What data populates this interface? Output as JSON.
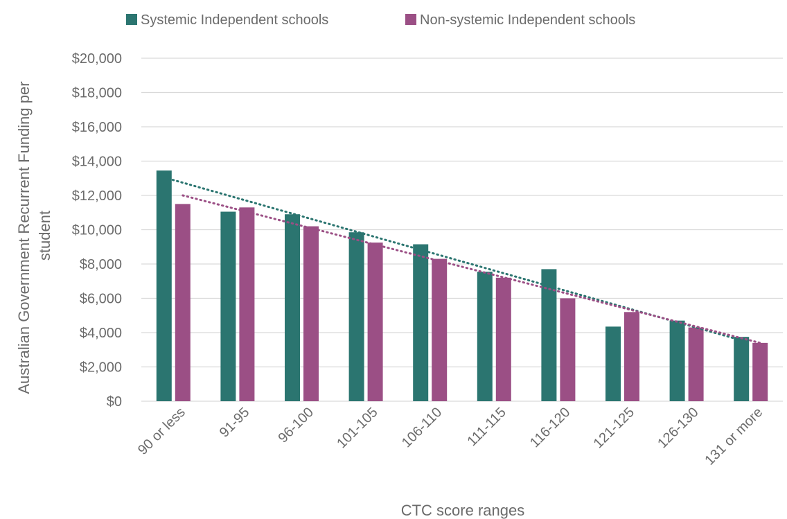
{
  "chart_data": {
    "type": "bar",
    "title": "",
    "xlabel": "CTC score ranges",
    "ylabel": "Australian Government Recurrent Funding per student",
    "categories": [
      "90 or less",
      "91-95",
      "96-100",
      "101-105",
      "106-110",
      "111-115",
      "116-120",
      "121-125",
      "126-130",
      "131 or more"
    ],
    "series": [
      {
        "name": "Systemic Independent schools",
        "color": "#2b7570",
        "values": [
          13450,
          11050,
          10900,
          9850,
          9150,
          7550,
          7700,
          4350,
          4700,
          3750
        ]
      },
      {
        "name": "Non-systemic Independent schools",
        "color": "#9b4f85",
        "values": [
          11500,
          11300,
          10200,
          9250,
          8300,
          7200,
          6000,
          5200,
          4300,
          3400
        ]
      }
    ],
    "trendlines": [
      {
        "series": "Systemic Independent schools",
        "style": "dotted",
        "color": "#2b7570",
        "start": 13050,
        "end": 3550
      },
      {
        "series": "Non-systemic Independent schools",
        "style": "dotted",
        "color": "#9b4f85",
        "start": 12000,
        "end": 3400
      }
    ],
    "ylim": [
      0,
      20000
    ],
    "yticks": [
      0,
      2000,
      4000,
      6000,
      8000,
      10000,
      12000,
      14000,
      16000,
      18000,
      20000
    ],
    "ytick_labels": [
      "$0",
      "$2,000",
      "$4,000",
      "$6,000",
      "$8,000",
      "$10,000",
      "$12,000",
      "$14,000",
      "$16,000",
      "$18,000",
      "$20,000"
    ],
    "ylabel_lines": [
      "Australian Government Recurrent Funding per",
      "student"
    ],
    "grid": true,
    "legend_position": "top"
  }
}
